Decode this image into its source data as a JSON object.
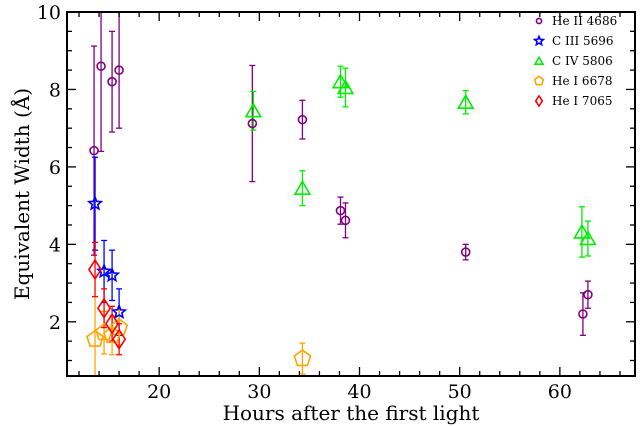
{
  "chart_data": {
    "type": "scatter",
    "xlabel": "Hours after the first light",
    "ylabel": "Equivalent Width (Å)",
    "xlim": [
      10.8,
      67.5
    ],
    "ylim": [
      0.6,
      10.0
    ],
    "xticks": [
      20,
      30,
      40,
      50,
      60
    ],
    "yticks": [
      2,
      4,
      6,
      8,
      10
    ],
    "grid": false,
    "legend_position": "top-right",
    "series": [
      {
        "name": "He II 4686",
        "color": "#800080",
        "marker": "circle",
        "marker_size": "small",
        "points": [
          {
            "x": 13.5,
            "y": 6.42,
            "err": 2.7
          },
          {
            "x": 14.2,
            "y": 8.6,
            "err": 2.2
          },
          {
            "x": 15.3,
            "y": 8.2,
            "err": 1.3
          },
          {
            "x": 16.0,
            "y": 8.5,
            "err": 1.5
          },
          {
            "x": 29.3,
            "y": 7.12,
            "err": 1.5
          },
          {
            "x": 34.3,
            "y": 7.22,
            "err": 0.5
          },
          {
            "x": 38.1,
            "y": 4.87,
            "err": 0.35
          },
          {
            "x": 38.6,
            "y": 4.62,
            "err": 0.45
          },
          {
            "x": 50.6,
            "y": 3.8,
            "err": 0.2
          },
          {
            "x": 62.3,
            "y": 2.2,
            "err": 0.55
          },
          {
            "x": 62.8,
            "y": 2.7,
            "err": 0.35
          }
        ]
      },
      {
        "name": "C III 5696",
        "color": "#0000ff",
        "marker": "star",
        "marker_size": "medium",
        "points": [
          {
            "x": 13.6,
            "y": 5.05,
            "err": 1.2
          },
          {
            "x": 14.5,
            "y": 3.3,
            "err": 0.8
          },
          {
            "x": 15.3,
            "y": 3.2,
            "err": 0.65
          },
          {
            "x": 16.0,
            "y": 2.25,
            "err": 0.6
          }
        ]
      },
      {
        "name": "C IV 5806",
        "color": "#00ee00",
        "marker": "triangle",
        "marker_size": "large",
        "points": [
          {
            "x": 29.4,
            "y": 7.45,
            "err": 0.5
          },
          {
            "x": 34.3,
            "y": 5.45,
            "err": 0.45
          },
          {
            "x": 38.1,
            "y": 8.2,
            "err": 0.4
          },
          {
            "x": 38.6,
            "y": 8.05,
            "err": 0.5
          },
          {
            "x": 50.6,
            "y": 7.67,
            "err": 0.3
          },
          {
            "x": 62.2,
            "y": 4.32,
            "err": 0.65
          },
          {
            "x": 62.8,
            "y": 4.15,
            "err": 0.45
          }
        ]
      },
      {
        "name": "He I 6678",
        "color": "#ffa500",
        "marker": "pentagon",
        "marker_size": "large",
        "points": [
          {
            "x": 13.6,
            "y": 1.55,
            "err": 1.1
          },
          {
            "x": 14.5,
            "y": 1.72,
            "err": 0.55
          },
          {
            "x": 15.3,
            "y": 1.65,
            "err": 0.5
          },
          {
            "x": 16.0,
            "y": 1.85,
            "err": 0.45
          },
          {
            "x": 34.3,
            "y": 1.05,
            "err": 0.4
          }
        ]
      },
      {
        "name": "He I 7065",
        "color": "#ff0000",
        "marker": "diamond",
        "marker_size": "large",
        "points": [
          {
            "x": 13.6,
            "y": 3.35,
            "err": 0.7
          },
          {
            "x": 14.5,
            "y": 2.35,
            "err": 0.5
          },
          {
            "x": 15.3,
            "y": 1.95,
            "err": 0.45
          },
          {
            "x": 16.0,
            "y": 1.55,
            "err": 0.4
          }
        ]
      }
    ]
  }
}
